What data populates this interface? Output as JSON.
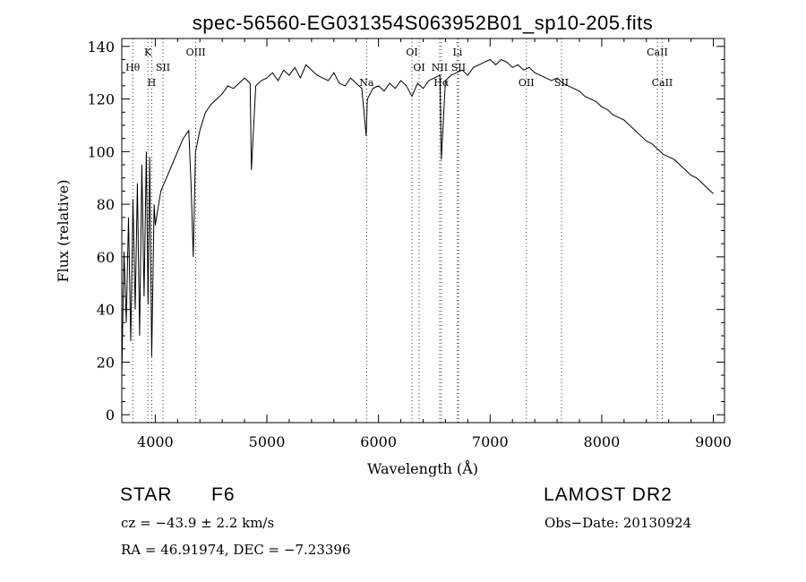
{
  "chart_data": {
    "type": "line",
    "title": "spec-56560-EG031354S063952B01_sp10-205.fits",
    "xlabel": "Wavelength (Å)",
    "ylabel": "Flux (relative)",
    "xlim": [
      3700,
      9100
    ],
    "ylim": [
      -3,
      143
    ],
    "x_ticks": [
      4000,
      5000,
      6000,
      7000,
      8000,
      9000
    ],
    "y_ticks": [
      0,
      20,
      40,
      60,
      80,
      100,
      120,
      140
    ],
    "grid": false,
    "series": [
      {
        "x": [
          3700,
          3720,
          3740,
          3760,
          3780,
          3800,
          3820,
          3840,
          3860,
          3880,
          3900,
          3920,
          3935,
          3950,
          3968,
          3990,
          4000,
          4050,
          4100,
          4150,
          4200,
          4250,
          4300,
          4320,
          4340,
          4360,
          4400,
          4450,
          4500,
          4550,
          4600,
          4650,
          4700,
          4750,
          4800,
          4850,
          4861,
          4900,
          4950,
          5000,
          5050,
          5100,
          5150,
          5200,
          5250,
          5300,
          5350,
          5400,
          5450,
          5500,
          5550,
          5600,
          5650,
          5700,
          5750,
          5800,
          5850,
          5890,
          5900,
          5950,
          6000,
          6050,
          6100,
          6150,
          6200,
          6250,
          6300,
          6350,
          6400,
          6450,
          6500,
          6550,
          6563,
          6600,
          6650,
          6700,
          6750,
          6800,
          6850,
          6900,
          6950,
          7000,
          7050,
          7100,
          7150,
          7200,
          7250,
          7300,
          7350,
          7400,
          7450,
          7500,
          7550,
          7600,
          7650,
          7700,
          7750,
          7800,
          7850,
          7900,
          7950,
          8000,
          8050,
          8100,
          8150,
          8200,
          8250,
          8300,
          8350,
          8400,
          8450,
          8500,
          8550,
          8600,
          8650,
          8700,
          8750,
          8800,
          8850,
          8900,
          8950,
          9000
        ],
        "y": [
          15,
          62,
          35,
          75,
          28,
          82,
          40,
          88,
          30,
          95,
          45,
          100,
          42,
          98,
          22,
          80,
          72,
          85,
          90,
          95,
          100,
          105,
          108,
          88,
          60,
          100,
          108,
          115,
          118,
          120,
          122,
          125,
          124,
          126,
          128,
          126,
          93,
          125,
          127,
          128,
          130,
          127,
          131,
          129,
          132,
          128,
          133,
          131,
          129,
          128,
          127,
          130,
          126,
          125,
          128,
          126,
          124,
          106,
          120,
          124,
          125,
          123,
          126,
          124,
          127,
          125,
          121,
          126,
          124,
          127,
          128,
          129,
          97,
          127,
          129,
          130,
          131,
          129,
          132,
          133,
          134,
          135,
          133,
          135,
          134,
          132,
          133,
          131,
          132,
          130,
          129,
          128,
          127,
          128,
          126,
          125,
          124,
          123,
          121,
          120,
          119,
          117,
          116,
          114,
          113,
          112,
          110,
          108,
          106,
          104,
          103,
          101,
          99,
          98,
          97,
          95,
          93,
          91,
          90,
          88,
          86,
          84
        ]
      }
    ],
    "lines": [
      {
        "label": "K",
        "x": 3934,
        "row": 1
      },
      {
        "label": "H",
        "x": 3968,
        "row": 3
      },
      {
        "label": "Hθ",
        "x": 3798,
        "row": 2
      },
      {
        "label": "SII",
        "x": 4069,
        "row": 2
      },
      {
        "label": "OIII",
        "x": 4363,
        "row": 1
      },
      {
        "label": "Na",
        "x": 5893,
        "row": 3
      },
      {
        "label": "OI",
        "x": 6300,
        "row": 1
      },
      {
        "label": "OI",
        "x": 6364,
        "row": 2
      },
      {
        "label": "NII",
        "x": 6548,
        "row": 2
      },
      {
        "label": "Hα",
        "x": 6563,
        "row": 3
      },
      {
        "label": "Li",
        "x": 6708,
        "row": 1
      },
      {
        "label": "SII",
        "x": 6717,
        "row": 2
      },
      {
        "label": "OII",
        "x": 7325,
        "row": 3
      },
      {
        "label": "SII",
        "x": 7640,
        "row": 3
      },
      {
        "label": "CaII",
        "x": 8498,
        "row": 1
      },
      {
        "label": "CaII",
        "x": 8542,
        "row": 3
      }
    ]
  },
  "info": {
    "obj_class": "STAR",
    "subclass": "F6",
    "survey": "LAMOST DR2",
    "cz": "cz = −43.9 ± 2.2 km/s",
    "obs_date": "Obs−Date: 20130924",
    "radec": "RA =  46.91974, DEC =  −7.23396"
  }
}
